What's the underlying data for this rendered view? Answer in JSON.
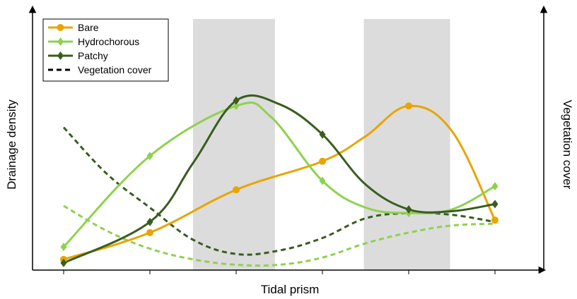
{
  "chart_data": {
    "type": "line",
    "xlabel": "Tidal prism",
    "ylabel": "Drainage density",
    "y2label": "Vegetation cover",
    "x": [
      1,
      2,
      3,
      4,
      5,
      6
    ],
    "xlim": [
      0.63,
      6.63
    ],
    "ylim": [
      0,
      100
    ],
    "grid": false,
    "shaded_regions": [
      [
        2.5,
        3.45
      ],
      [
        4.48,
        5.48
      ]
    ],
    "legend": {
      "placement": "top-left"
    },
    "series": [
      {
        "name": "Bare",
        "color": "#e8a500",
        "marker": "circle",
        "style": "solid",
        "values": [
          6,
          21,
          45,
          61,
          92,
          28
        ],
        "curve_x": [
          1,
          2,
          3,
          4,
          4.5,
          5,
          5.5,
          6
        ],
        "curve_y": [
          6,
          21,
          45,
          61,
          75,
          92,
          78,
          28
        ]
      },
      {
        "name": "Hydrochorous",
        "color": "#8fd14f",
        "marker": "diamond",
        "style": "solid",
        "values": [
          13,
          64,
          92,
          50,
          32,
          47
        ],
        "curve_x": [
          1,
          2,
          3,
          3.4,
          4,
          4.5,
          5,
          5.5,
          6
        ],
        "curve_y": [
          13,
          64,
          92,
          86,
          50,
          35,
          32,
          34,
          47
        ]
      },
      {
        "name": "Patchy",
        "color": "#385d1e",
        "marker": "diamond",
        "style": "solid",
        "values": [
          4,
          27,
          95,
          76,
          34,
          37
        ],
        "curve_x": [
          1,
          2,
          2.5,
          3,
          3.5,
          4,
          4.5,
          5,
          5.5,
          6
        ],
        "curve_y": [
          4,
          27,
          60,
          95,
          93,
          76,
          48,
          34,
          33,
          37
        ]
      }
    ],
    "vegetation_cover": {
      "legend_name": "Vegetation cover",
      "style": "dashed",
      "curves": [
        {
          "color": "#385d1e",
          "x": [
            1,
            1.5,
            2,
            2.5,
            3,
            3.5,
            4,
            4.5,
            5,
            5.5,
            6
          ],
          "y": [
            80,
            54,
            35,
            17,
            9,
            11,
            18,
            29,
            32,
            31,
            27
          ]
        },
        {
          "color": "#8fd14f",
          "x": [
            1,
            1.5,
            2,
            2.5,
            3,
            3.5,
            4,
            4.5,
            5,
            5.5,
            6
          ],
          "y": [
            36,
            22,
            12,
            6,
            3,
            3,
            7,
            15,
            21,
            25,
            26
          ]
        }
      ]
    }
  }
}
